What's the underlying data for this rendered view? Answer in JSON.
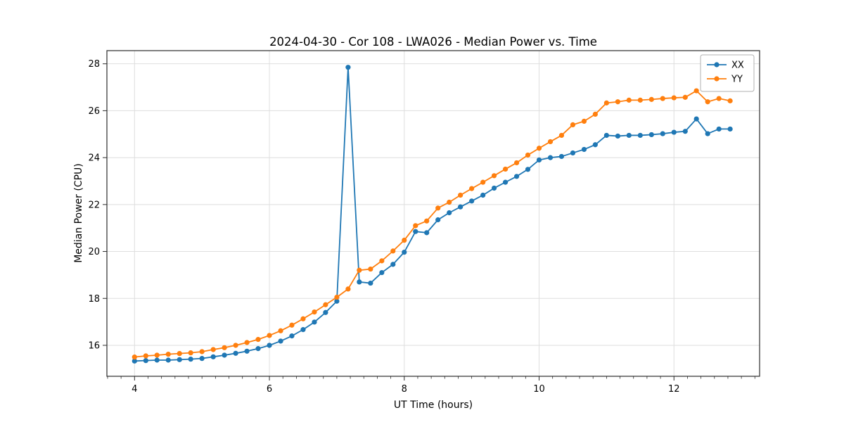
{
  "figure": {
    "background": "#ffffff",
    "spine_color": "#2b2b2b",
    "grid_color": "#dedede",
    "tick_color": "#2b2b2b",
    "text_color": "#000000"
  },
  "chart_data": {
    "type": "line",
    "title": "2024-04-30 - Cor 108 - LWA026 - Median Power vs. Time",
    "xlabel": "UT Time (hours)",
    "ylabel": "Median Power (CPU)",
    "xlim": [
      3.59,
      13.27
    ],
    "ylim": [
      14.68,
      28.56
    ],
    "xticks": [
      4,
      6,
      8,
      10,
      12
    ],
    "yticks": [
      16,
      18,
      20,
      22,
      24,
      26,
      28
    ],
    "x_minor_tick_step": 0.2,
    "grid": true,
    "legend_position": "upper right",
    "marker": "o",
    "x": [
      4.0,
      4.167,
      4.333,
      4.5,
      4.667,
      4.833,
      5.0,
      5.167,
      5.333,
      5.5,
      5.667,
      5.833,
      6.0,
      6.167,
      6.333,
      6.5,
      6.667,
      6.833,
      7.0,
      7.167,
      7.333,
      7.5,
      7.667,
      7.833,
      8.0,
      8.167,
      8.333,
      8.5,
      8.667,
      8.833,
      9.0,
      9.167,
      9.333,
      9.5,
      9.667,
      9.833,
      10.0,
      10.167,
      10.333,
      10.5,
      10.667,
      10.833,
      11.0,
      11.167,
      11.333,
      11.5,
      11.667,
      11.833,
      12.0,
      12.167,
      12.333,
      12.5,
      12.667,
      12.833
    ],
    "series": [
      {
        "name": "XX",
        "color": "#1f77b4",
        "values": [
          15.33,
          15.35,
          15.37,
          15.37,
          15.39,
          15.41,
          15.44,
          15.51,
          15.58,
          15.66,
          15.75,
          15.86,
          16.0,
          16.18,
          16.4,
          16.67,
          16.99,
          17.4,
          17.88,
          27.85,
          18.7,
          18.65,
          19.1,
          19.45,
          19.97,
          20.85,
          20.8,
          21.35,
          21.65,
          21.9,
          22.15,
          22.4,
          22.7,
          22.95,
          23.2,
          23.5,
          23.9,
          24.0,
          24.05,
          24.2,
          24.35,
          24.55,
          24.95,
          24.92,
          24.95,
          24.95,
          24.98,
          25.02,
          25.08,
          25.12,
          25.65,
          25.02,
          25.22,
          25.22
        ]
      },
      {
        "name": "YY",
        "color": "#ff7f0e",
        "values": [
          15.5,
          15.55,
          15.58,
          15.62,
          15.65,
          15.68,
          15.73,
          15.82,
          15.9,
          16.0,
          16.12,
          16.25,
          16.42,
          16.62,
          16.86,
          17.13,
          17.42,
          17.73,
          18.05,
          18.4,
          19.2,
          19.25,
          19.6,
          20.02,
          20.48,
          21.1,
          21.3,
          21.85,
          22.1,
          22.4,
          22.68,
          22.95,
          23.23,
          23.51,
          23.78,
          24.11,
          24.4,
          24.68,
          24.95,
          25.4,
          25.55,
          25.85,
          26.33,
          26.38,
          26.45,
          26.45,
          26.48,
          26.52,
          26.55,
          26.57,
          26.85,
          26.38,
          26.52,
          26.42
        ]
      }
    ]
  }
}
